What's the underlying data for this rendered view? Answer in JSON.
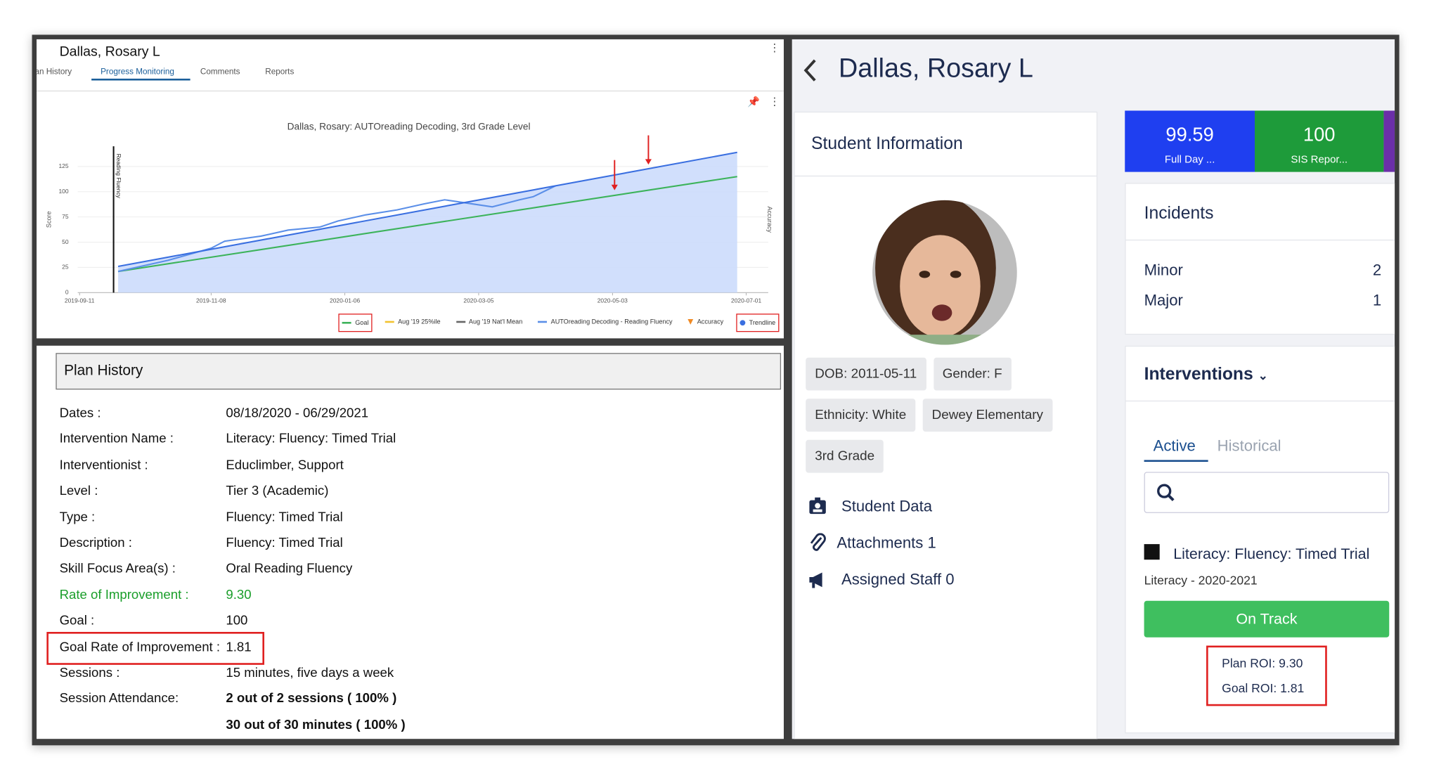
{
  "progress_monitoring": {
    "student": "Dallas, Rosary L",
    "tabs": [
      "Plan History",
      "Progress Monitoring",
      "Comments",
      "Reports"
    ],
    "chart_data": {
      "type": "line",
      "title": "Dallas, Rosary: AUTOreading Decoding, 3rd Grade Level",
      "y_label": "Score",
      "y2_label": "Accuracy",
      "xlim": [
        "2019-09-11",
        "2020-07-01"
      ],
      "xticks": [
        "2019-09-11",
        "2019-11-08",
        "2020-01-06",
        "2020-03-05",
        "2020-05-03",
        "2020-07-01"
      ],
      "ylim": [
        0,
        145
      ],
      "yticks": [
        0,
        25,
        50,
        75,
        100,
        125
      ],
      "grid": true,
      "markers": [
        {
          "x": "2019-09-26",
          "label": "Reading Fluency"
        }
      ],
      "series": [
        {
          "name": "Goal",
          "color": "#3cb35a",
          "marker": "line",
          "highlight": true,
          "x": [
            "2019-09-28",
            "2020-06-27"
          ],
          "values": [
            21,
            115
          ]
        },
        {
          "name": "Aug '19 25%ile",
          "color": "#f2c230",
          "marker": "line",
          "x": [],
          "values": []
        },
        {
          "name": "Aug '19 Nat'l Mean",
          "color": "#666666",
          "marker": "line",
          "x": [],
          "values": []
        },
        {
          "name": "AUTOreading Decoding - Reading Fluency",
          "color": "#5b8fe8",
          "marker": "line",
          "x": [
            "2019-09-28",
            "2019-10-20",
            "2019-11-08",
            "2019-11-14",
            "2019-11-30",
            "2019-12-12",
            "2019-12-26",
            "2020-01-03",
            "2020-01-15",
            "2020-01-29",
            "2020-02-10",
            "2020-02-19",
            "2020-02-28",
            "2020-03-11",
            "2020-03-23",
            "2020-03-29",
            "2020-04-08"
          ],
          "values": [
            21,
            32,
            44,
            51,
            56,
            62,
            65,
            71,
            77,
            82,
            88,
            92,
            89,
            85,
            92,
            95,
            106
          ]
        },
        {
          "name": "Accuracy",
          "color": "#f08a24",
          "marker": "triangle",
          "x": [],
          "values": []
        },
        {
          "name": "Trendline",
          "color": "#3a6fe0",
          "marker": "dot",
          "highlight": true,
          "fill": "#c9d9fb",
          "x": [
            "2019-09-28",
            "2020-06-27"
          ],
          "values": [
            26,
            139
          ]
        }
      ]
    }
  },
  "plan_history": {
    "title": "Plan History",
    "rows": [
      {
        "label": "Dates :",
        "values": [
          "08/18/2020 - 06/29/2021"
        ]
      },
      {
        "label": "Intervention Name :",
        "values": [
          "Literacy: Fluency: Timed Trial"
        ]
      },
      {
        "label": "Interventionist :",
        "values": [
          "Educlimber, Support"
        ]
      },
      {
        "label": "Level :",
        "values": [
          "Tier 3 (Academic)"
        ]
      },
      {
        "label": "Type :",
        "values": [
          "Fluency: Timed Trial"
        ]
      },
      {
        "label": "Description :",
        "values": [
          "Fluency: Timed Trial"
        ]
      },
      {
        "label": "Skill Focus Area(s) :",
        "values": [
          "Oral Reading Fluency"
        ]
      },
      {
        "label": "Rate of Improvement :",
        "values": [
          "9.30"
        ],
        "color": "#1a9e2a"
      },
      {
        "label": "Goal :",
        "values": [
          "100"
        ]
      },
      {
        "label": "Goal Rate of Improvement :",
        "values": [
          "1.81"
        ],
        "highlight": true
      },
      {
        "label": "Sessions :",
        "values": [
          "15 minutes, five days a week"
        ]
      },
      {
        "label": "Session Attendance:",
        "values": [
          "2 out of 2 sessions ( 100% )",
          "30 out of 30 minutes ( 100% )"
        ],
        "bold": true
      }
    ]
  },
  "profile": {
    "name": "Dallas, Rosary L",
    "student_info_title": "Student Information",
    "chips": [
      "DOB: 2011-05-11",
      "Gender: F",
      "Ethnicity: White",
      "Dewey Elementary",
      "3rd Grade"
    ],
    "links": [
      "Student Data",
      "Attachments 1",
      "Assigned Staff 0"
    ],
    "tiles": [
      {
        "value": "99.59",
        "label": "Full Day ...",
        "color": "#1f3ff0"
      },
      {
        "value": "100",
        "label": "SIS Repor...",
        "color": "#1e9b3a"
      }
    ],
    "incidents": {
      "title": "Incidents",
      "items": [
        {
          "label": "Minor",
          "count": "2"
        },
        {
          "label": "Major",
          "count": "1"
        }
      ]
    },
    "interventions": {
      "title": "Interventions",
      "tabs": [
        "Active",
        "Historical"
      ],
      "item": "Literacy: Fluency: Timed Trial",
      "subtitle": "Literacy - 2020-2021",
      "status": "On Track",
      "plan_roi": "Plan ROI: 9.30",
      "goal_roi": "Goal ROI: 1.81"
    }
  }
}
